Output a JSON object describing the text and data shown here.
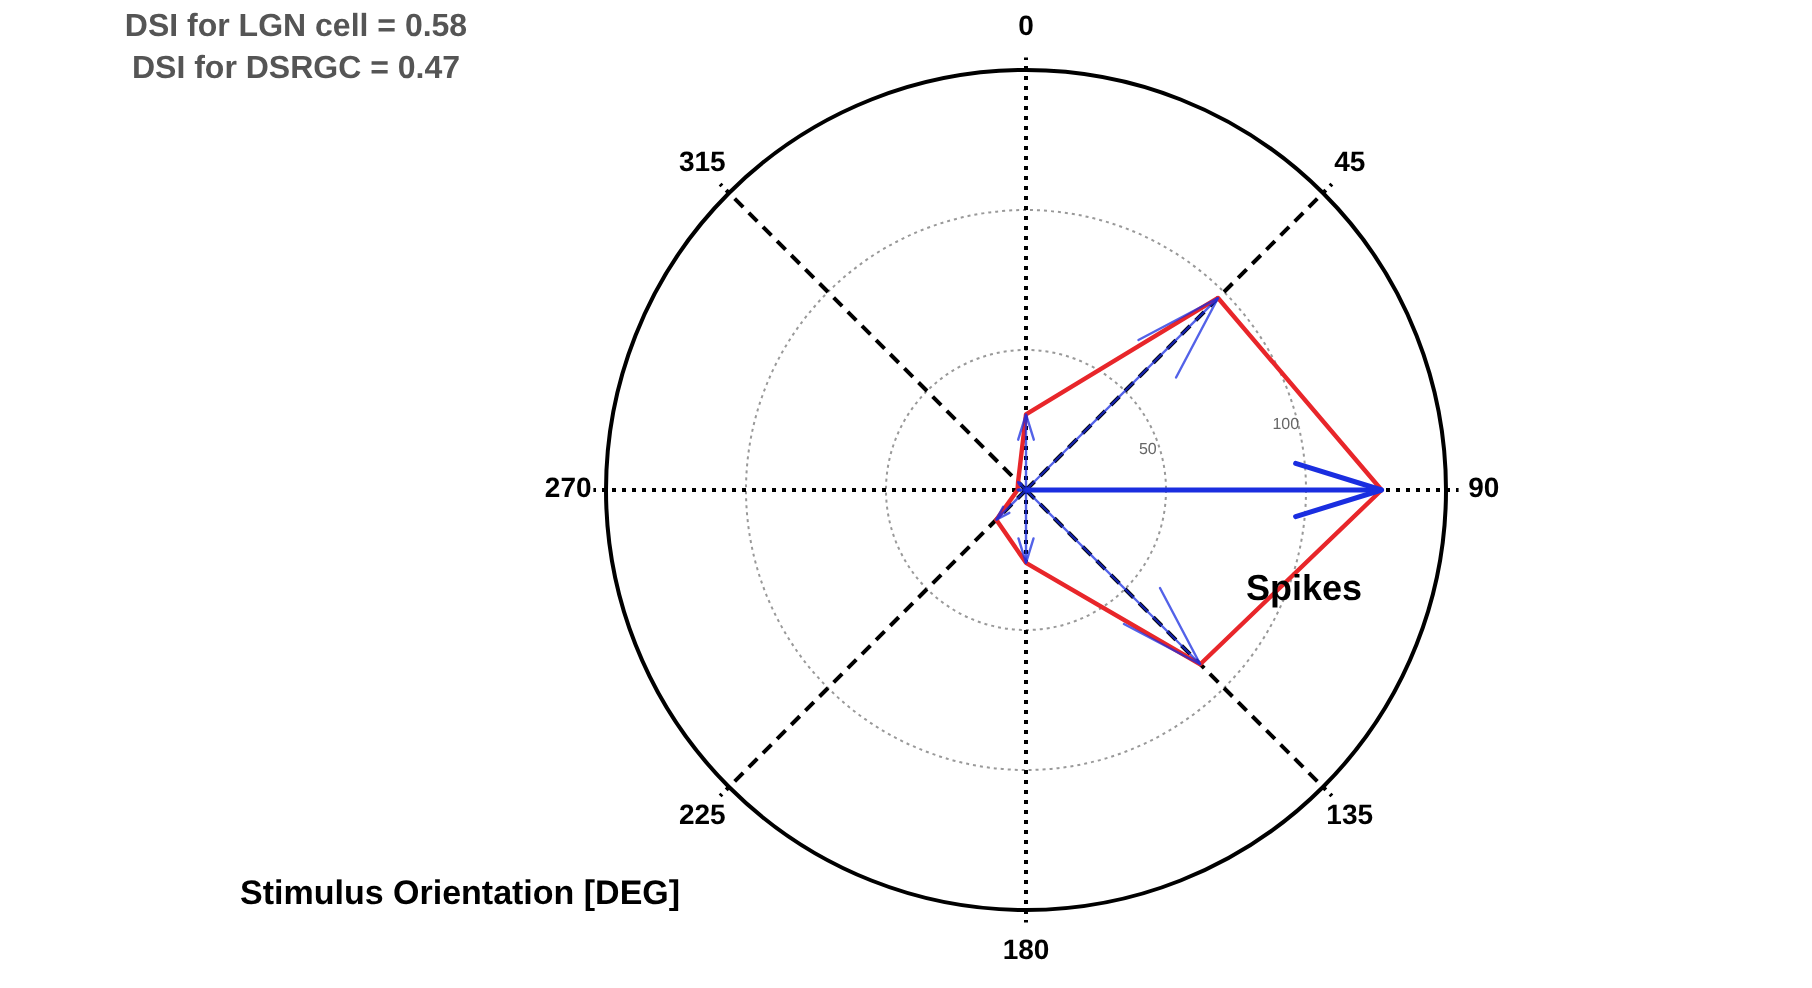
{
  "chart_data": {
    "type": "radar",
    "categories": [
      "0",
      "45",
      "90",
      "135",
      "180",
      "225",
      "270",
      "315"
    ],
    "series": [
      {
        "type": "radar",
        "color": "#e8262a",
        "values": [
          27,
          97,
          127,
          88,
          26,
          15,
          3,
          4
        ]
      }
    ],
    "ylim": [
      0,
      150
    ],
    "yticks": [
      50,
      100
    ],
    "grid": true,
    "xlabel": "Stimulus Orientation [DEG]",
    "ylabel": "Spikes",
    "annotations": [
      "DSI for LGN cell = 0.58",
      "DSI for DSRGC = 0.47"
    ]
  }
}
